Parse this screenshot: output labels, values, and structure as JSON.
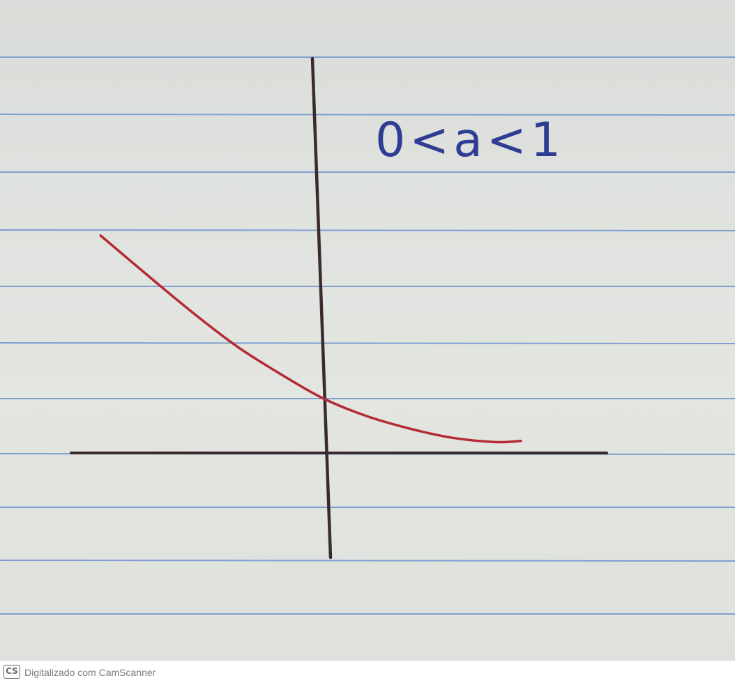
{
  "chart_data": {
    "type": "line",
    "title": "",
    "annotation": "0<a<1",
    "xlabel": "",
    "ylabel": "",
    "grid": false,
    "series": [
      {
        "x": [
          -2.6,
          -2.0,
          -1.5,
          -1.0,
          -0.5,
          0,
          0.5,
          1.0,
          1.5,
          2.0,
          2.3
        ],
        "values": [
          4.0,
          3.2,
          2.55,
          1.95,
          1.45,
          1.0,
          0.68,
          0.45,
          0.28,
          0.2,
          0.22
        ]
      }
    ],
    "colors": {
      "curve": "#b42a35",
      "axes": "#3a2a2c",
      "annotation": "#2f3c93",
      "ruled_line": "#7f9fd2"
    }
  },
  "watermark": {
    "logo": "CS",
    "text": "Digitalizado com CamScanner"
  }
}
